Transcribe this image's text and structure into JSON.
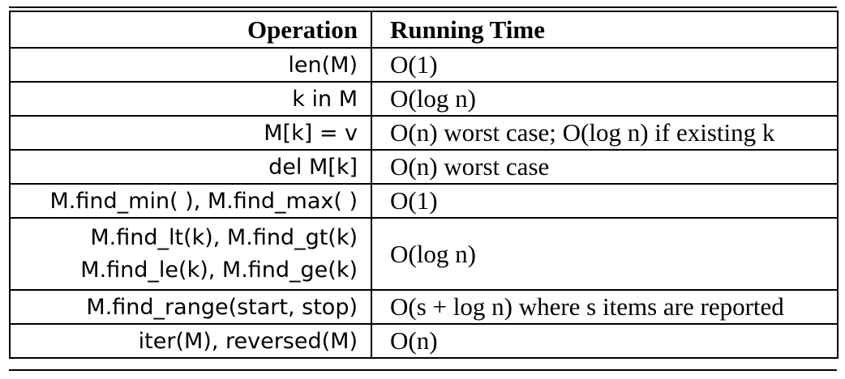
{
  "table": {
    "header": {
      "operation": "Operation",
      "running_time": "Running Time"
    },
    "rows": [
      {
        "operation": [
          "len(M)"
        ],
        "running_time": "O(1)"
      },
      {
        "operation": [
          "k in M"
        ],
        "running_time": "O(log n)"
      },
      {
        "operation": [
          "M[k] = v"
        ],
        "running_time": "O(n) worst case; O(log n) if existing k"
      },
      {
        "operation": [
          "del M[k]"
        ],
        "running_time": "O(n) worst case"
      },
      {
        "operation": [
          "M.find_min( ), M.find_max( )"
        ],
        "running_time": "O(1)"
      },
      {
        "operation": [
          "M.find_lt(k), M.find_gt(k)",
          "M.find_le(k), M.find_ge(k)"
        ],
        "running_time": "O(log n)"
      },
      {
        "operation": [
          "M.find_range(start, stop)"
        ],
        "running_time": "O(s + log n) where s items are reported"
      },
      {
        "operation": [
          "iter(M), reversed(M)"
        ],
        "running_time": "O(n)"
      }
    ]
  }
}
